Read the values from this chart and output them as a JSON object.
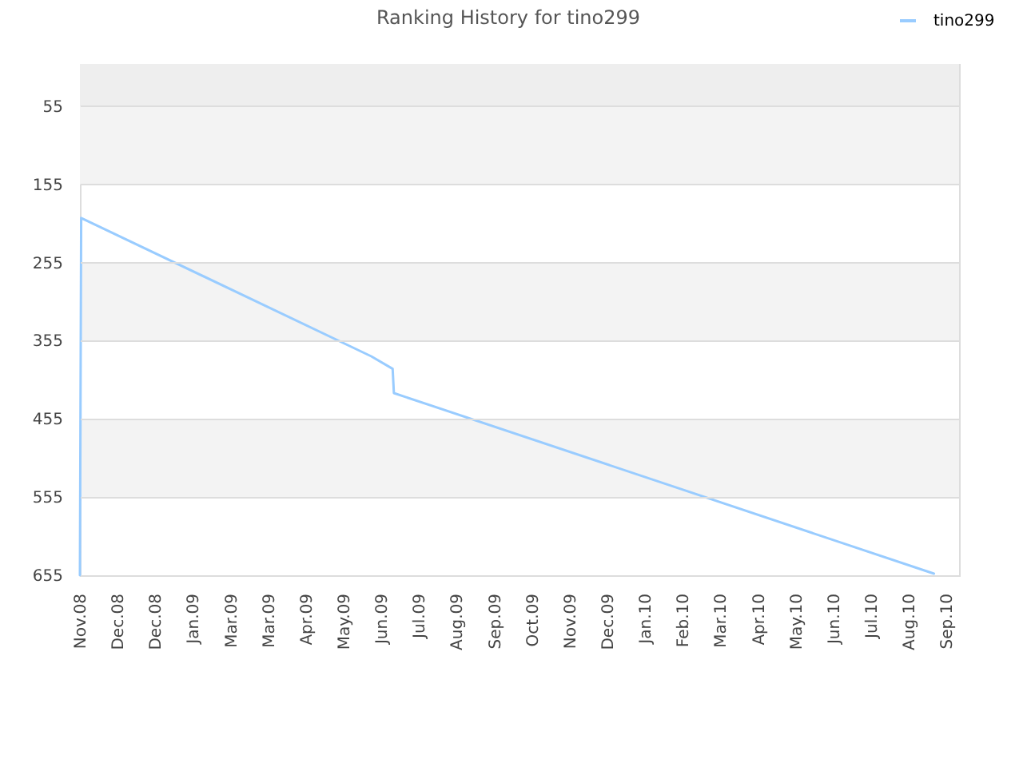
{
  "chart_data": {
    "type": "line",
    "title": "Ranking History for tino299",
    "x": [
      "2008-11-01",
      "2008-11-02",
      "2009-06-21",
      "2009-07-08",
      "2009-07-09",
      "2010-09-12"
    ],
    "series": [
      {
        "name": "tino299",
        "color": "#99ccff",
        "values": [
          655,
          198,
          375,
          391,
          422,
          653
        ]
      }
    ],
    "xlim": [
      "2008-11-01",
      "2010-10-02"
    ],
    "xticks": [
      {
        "value": "2008-11-01",
        "label": "Nov.08"
      },
      {
        "value": "2008-12-01",
        "label": "Dec.08"
      },
      {
        "value": "2008-12-31",
        "label": "Dec.08"
      },
      {
        "value": "2009-01-30",
        "label": "Jan.09"
      },
      {
        "value": "2009-03-01",
        "label": "Mar.09"
      },
      {
        "value": "2009-03-31",
        "label": "Mar.09"
      },
      {
        "value": "2009-04-30",
        "label": "Apr.09"
      },
      {
        "value": "2009-05-30",
        "label": "May.09"
      },
      {
        "value": "2009-06-29",
        "label": "Jun.09"
      },
      {
        "value": "2009-07-29",
        "label": "Jul.09"
      },
      {
        "value": "2009-08-28",
        "label": "Aug.09"
      },
      {
        "value": "2009-09-27",
        "label": "Sep.09"
      },
      {
        "value": "2009-10-27",
        "label": "Oct.09"
      },
      {
        "value": "2009-11-26",
        "label": "Nov.09"
      },
      {
        "value": "2009-12-26",
        "label": "Dec.09"
      },
      {
        "value": "2010-01-25",
        "label": "Jan.10"
      },
      {
        "value": "2010-02-24",
        "label": "Feb.10"
      },
      {
        "value": "2010-03-26",
        "label": "Mar.10"
      },
      {
        "value": "2010-04-25",
        "label": "Apr.10"
      },
      {
        "value": "2010-05-25",
        "label": "May.10"
      },
      {
        "value": "2010-06-24",
        "label": "Jun.10"
      },
      {
        "value": "2010-07-24",
        "label": "Jul.10"
      },
      {
        "value": "2010-08-23",
        "label": "Aug.10"
      },
      {
        "value": "2010-09-22",
        "label": "Sep.10"
      }
    ],
    "ylim": [
      655,
      1
    ],
    "yticks": [
      55,
      155,
      255,
      355,
      455,
      555,
      655
    ],
    "grid": "y",
    "legend": "top right",
    "bands": [
      {
        "axis": "y",
        "from": 1,
        "to": 55,
        "color": "#eeeeee"
      },
      {
        "axis": "y",
        "from": 55,
        "to": 155,
        "color": "#f3f3f3"
      },
      {
        "axis": "y",
        "from": 255,
        "to": 355,
        "color": "#f3f3f3"
      },
      {
        "axis": "y",
        "from": 455,
        "to": 555,
        "color": "#f3f3f3"
      }
    ]
  }
}
